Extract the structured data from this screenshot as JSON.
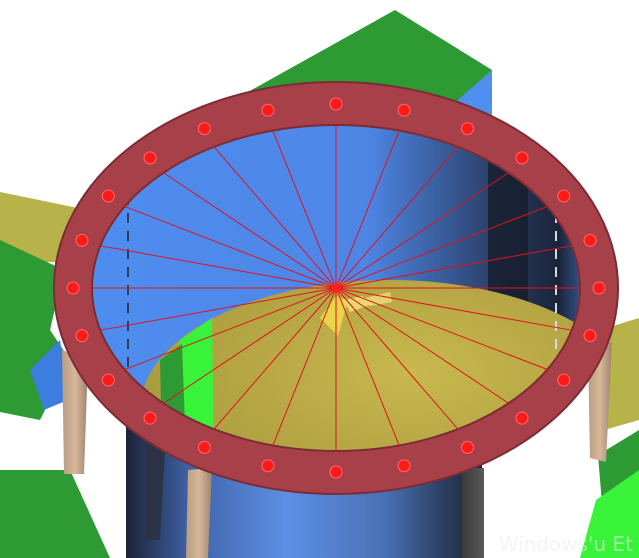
{
  "scene": {
    "colors": {
      "background": "#ffffff",
      "ground_olive": "#b7b24a",
      "green_panel": "#2e9a34",
      "bright_green": "#39f23a",
      "blue_face": "#4f8ff0",
      "cylinder_light": "#5b8fe6",
      "cylinder_dark": "#1b2130",
      "dome_yellow": "#c9b64a",
      "ring_red": "#a8404a",
      "line_red": "#e0121c",
      "bolt_red": "#ff1a1a",
      "pillar_tan": "#c8a488"
    },
    "icons": [
      "bolt-hole",
      "support-leg",
      "center-anchor"
    ]
  },
  "watermark": {
    "text": "Windows'u Et"
  }
}
